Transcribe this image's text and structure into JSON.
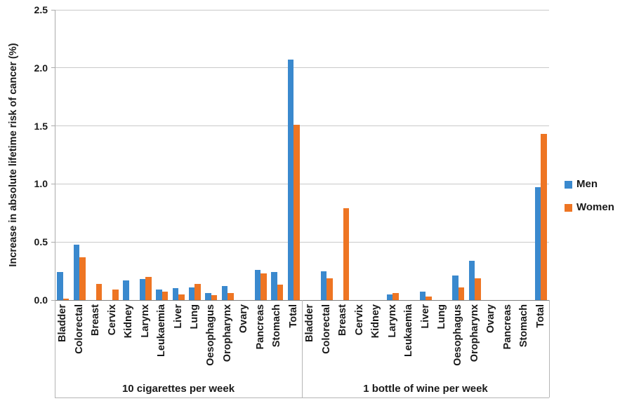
{
  "chart_data": {
    "type": "bar",
    "title": "",
    "ylabel": "Increase in absolute lifetime risk of cancer (%)",
    "xlabel": "",
    "ylim": [
      0,
      2.5
    ],
    "ytick_step": 0.5,
    "ytick_labels": [
      "0.0",
      "0.5",
      "1.0",
      "1.5",
      "2.0",
      "2.5"
    ],
    "grid": true,
    "legend_position": "right",
    "legend": [
      {
        "label": "Men",
        "color": "#3a89ce"
      },
      {
        "label": "Women",
        "color": "#ee7523"
      }
    ],
    "groups": [
      {
        "label": "10 cigarettes per week",
        "categories": [
          "Bladder",
          "Colorectal",
          "Breast",
          "Cervix",
          "Kidney",
          "Larynx",
          "Leukaemia",
          "Liver",
          "Lung",
          "Oesophagus",
          "Oropharynx",
          "Ovary",
          "Pancreas",
          "Stomach",
          "Total"
        ],
        "series": [
          {
            "name": "Men",
            "values": [
              0.24,
              0.48,
              0,
              0,
              0.17,
              0.18,
              0.09,
              0.1,
              0.11,
              0.06,
              0.12,
              0,
              0.26,
              0.24,
              2.07
            ]
          },
          {
            "name": "Women",
            "values": [
              0.01,
              0.37,
              0.14,
              0.09,
              0,
              0.2,
              0.07,
              0.05,
              0.14,
              0.04,
              0.06,
              0,
              0.23,
              0.13,
              1.51
            ]
          }
        ]
      },
      {
        "label": "1 bottle of wine per week",
        "categories": [
          "Bladder",
          "Colorectal",
          "Breast",
          "Cervix",
          "Kidney",
          "Larynx",
          "Leukaemia",
          "Liver",
          "Lung",
          "Oesophagus",
          "Oropharynx",
          "Ovary",
          "Pancreas",
          "Stomach",
          "Total"
        ],
        "series": [
          {
            "name": "Men",
            "values": [
              0,
              0.25,
              0,
              0,
              0,
              0.05,
              0,
              0.07,
              0,
              0.21,
              0.34,
              0,
              0,
              0,
              0.97
            ]
          },
          {
            "name": "Women",
            "values": [
              0,
              0.19,
              0.79,
              0,
              0,
              0.06,
              0,
              0.03,
              0,
              0.11,
              0.19,
              0,
              0,
              0,
              1.43
            ]
          }
        ]
      }
    ]
  }
}
